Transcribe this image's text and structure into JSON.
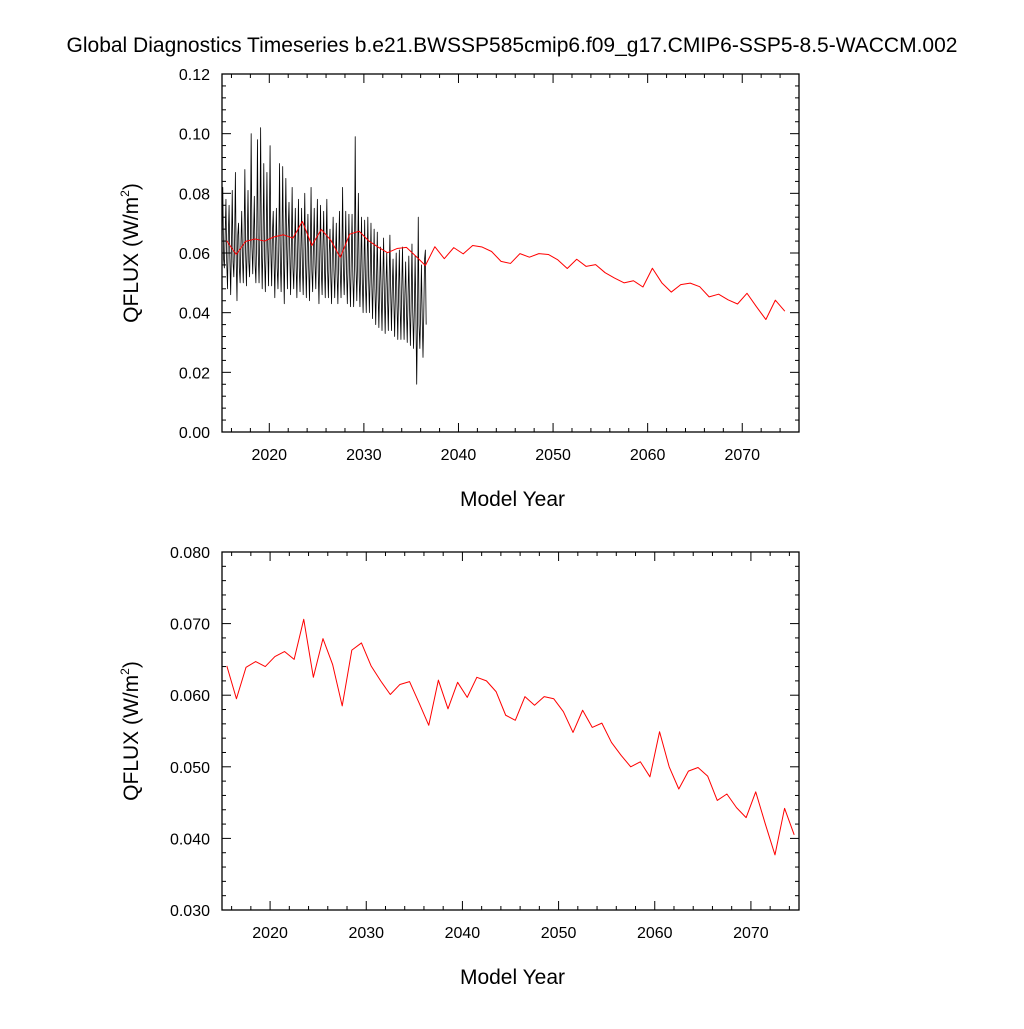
{
  "title": "Global Diagnostics Timeseries b.e21.BWSSP585cmip6.f09_g17.CMIP6-SSP5-8.5-WACCM.002",
  "colors": {
    "monthly": "#000000",
    "annual": "#ff0000",
    "frame": "#000000"
  },
  "chart_data": [
    {
      "type": "line",
      "xlabel": "Model Year",
      "ylabel_main": "QFLUX (W/m",
      "ylabel_sup": "2",
      "ylabel_tail": ")",
      "xlim": [
        2015,
        2076
      ],
      "ylim": [
        0.0,
        0.12
      ],
      "xticks": [
        2020,
        2030,
        2040,
        2050,
        2060,
        2070
      ],
      "xtick_labels": [
        "2020",
        "2030",
        "2040",
        "2050",
        "2060",
        "2070"
      ],
      "yticks": [
        0.0,
        0.02,
        0.04,
        0.06,
        0.08,
        0.1,
        0.12
      ],
      "ytick_labels": [
        "0.00",
        "0.02",
        "0.04",
        "0.06",
        "0.08",
        "0.10",
        "0.12"
      ],
      "series": [
        {
          "kind": "monthly",
          "x_start": 2015.0,
          "x_step": 0.0833333,
          "values": [
            0.062,
            0.082,
            0.058,
            0.055,
            0.066,
            0.078,
            0.057,
            0.048,
            0.066,
            0.076,
            0.058,
            0.046,
            0.062,
            0.081,
            0.057,
            0.052,
            0.064,
            0.087,
            0.058,
            0.044,
            0.066,
            0.07,
            0.055,
            0.05,
            0.063,
            0.074,
            0.058,
            0.05,
            0.065,
            0.088,
            0.06,
            0.049,
            0.063,
            0.081,
            0.057,
            0.052,
            0.065,
            0.1,
            0.062,
            0.053,
            0.066,
            0.079,
            0.056,
            0.05,
            0.065,
            0.098,
            0.06,
            0.05,
            0.066,
            0.102,
            0.062,
            0.048,
            0.064,
            0.09,
            0.058,
            0.047,
            0.063,
            0.087,
            0.062,
            0.049,
            0.068,
            0.096,
            0.06,
            0.049,
            0.067,
            0.074,
            0.058,
            0.045,
            0.062,
            0.075,
            0.055,
            0.048,
            0.061,
            0.09,
            0.057,
            0.047,
            0.063,
            0.089,
            0.059,
            0.043,
            0.065,
            0.085,
            0.062,
            0.048,
            0.068,
            0.077,
            0.059,
            0.046,
            0.063,
            0.082,
            0.055,
            0.048,
            0.061,
            0.075,
            0.056,
            0.045,
            0.061,
            0.078,
            0.055,
            0.047,
            0.061,
            0.075,
            0.055,
            0.046,
            0.062,
            0.08,
            0.057,
            0.045,
            0.06,
            0.073,
            0.055,
            0.044,
            0.06,
            0.082,
            0.054,
            0.047,
            0.062,
            0.075,
            0.056,
            0.048,
            0.063,
            0.078,
            0.055,
            0.043,
            0.059,
            0.076,
            0.054,
            0.046,
            0.062,
            0.074,
            0.055,
            0.045,
            0.062,
            0.078,
            0.054,
            0.045,
            0.06,
            0.068,
            0.052,
            0.043,
            0.06,
            0.072,
            0.054,
            0.045,
            0.058,
            0.07,
            0.053,
            0.043,
            0.058,
            0.074,
            0.054,
            0.045,
            0.058,
            0.082,
            0.055,
            0.046,
            0.058,
            0.074,
            0.054,
            0.043,
            0.057,
            0.073,
            0.052,
            0.042,
            0.058,
            0.073,
            0.052,
            0.042,
            0.055,
            0.099,
            0.056,
            0.044,
            0.057,
            0.08,
            0.052,
            0.042,
            0.055,
            0.072,
            0.05,
            0.04,
            0.054,
            0.071,
            0.05,
            0.04,
            0.055,
            0.072,
            0.052,
            0.04,
            0.053,
            0.07,
            0.05,
            0.038,
            0.052,
            0.068,
            0.048,
            0.036,
            0.05,
            0.067,
            0.047,
            0.035,
            0.049,
            0.062,
            0.045,
            0.034,
            0.05,
            0.065,
            0.046,
            0.033,
            0.049,
            0.06,
            0.045,
            0.034,
            0.05,
            0.066,
            0.047,
            0.034,
            0.048,
            0.058,
            0.044,
            0.032,
            0.047,
            0.06,
            0.043,
            0.031,
            0.047,
            0.061,
            0.042,
            0.031,
            0.048,
            0.062,
            0.043,
            0.031,
            0.046,
            0.057,
            0.041,
            0.03,
            0.045,
            0.059,
            0.041,
            0.029,
            0.044,
            0.063,
            0.04,
            0.028,
            0.041,
            0.059,
            0.039,
            0.016,
            0.038,
            0.072,
            0.036,
            0.028,
            0.04,
            0.056,
            0.038,
            0.025,
            0.04,
            0.058,
            0.061,
            0.036
          ]
        },
        {
          "kind": "annual",
          "x": [
            2015.5,
            2016.5,
            2017.5,
            2018.5,
            2019.5,
            2020.5,
            2021.5,
            2022.5,
            2023.5,
            2024.5,
            2025.5,
            2026.5,
            2027.5,
            2028.5,
            2029.5,
            2030.5,
            2031.5,
            2032.5,
            2033.5,
            2034.5,
            2035.5,
            2036.5,
            2037.5,
            2038.5,
            2039.5,
            2040.5,
            2041.5,
            2042.5,
            2043.5,
            2044.5,
            2045.5,
            2046.5,
            2047.5,
            2048.5,
            2049.5,
            2050.5,
            2051.5,
            2052.5,
            2053.5,
            2054.5,
            2055.5,
            2056.5,
            2057.5,
            2058.5,
            2059.5,
            2060.5,
            2061.5,
            2062.5,
            2063.5,
            2064.5,
            2065.5,
            2066.5,
            2067.5,
            2068.5,
            2069.5,
            2070.5,
            2071.5,
            2072.5,
            2073.5,
            2074.5
          ],
          "values": [
            0.0641,
            0.0595,
            0.0639,
            0.0647,
            0.064,
            0.0654,
            0.0661,
            0.065,
            0.0706,
            0.0625,
            0.0679,
            0.0643,
            0.0585,
            0.0663,
            0.0673,
            0.0641,
            0.062,
            0.0601,
            0.0615,
            0.0619,
            0.0589,
            0.0558,
            0.0621,
            0.0581,
            0.0618,
            0.0597,
            0.0625,
            0.062,
            0.0605,
            0.0572,
            0.0565,
            0.0598,
            0.0586,
            0.0598,
            0.0595,
            0.0577,
            0.0548,
            0.0579,
            0.0555,
            0.0561,
            0.0534,
            0.0516,
            0.05,
            0.0507,
            0.0486,
            0.0549,
            0.05,
            0.0469,
            0.0494,
            0.0499,
            0.0487,
            0.0453,
            0.0462,
            0.0443,
            0.0429,
            0.0465,
            0.042,
            0.0377,
            0.0442,
            0.0405
          ]
        }
      ]
    },
    {
      "type": "line",
      "xlabel": "Model Year",
      "ylabel_main": "QFLUX (W/m",
      "ylabel_sup": "2",
      "ylabel_tail": ")",
      "xlim": [
        2015,
        2075
      ],
      "ylim": [
        0.03,
        0.08
      ],
      "xticks": [
        2020,
        2030,
        2040,
        2050,
        2060,
        2070
      ],
      "xtick_labels": [
        "2020",
        "2030",
        "2040",
        "2050",
        "2060",
        "2070"
      ],
      "yticks": [
        0.03,
        0.04,
        0.05,
        0.06,
        0.07,
        0.08
      ],
      "ytick_labels": [
        "0.030",
        "0.040",
        "0.050",
        "0.060",
        "0.070",
        "0.080"
      ],
      "series": [
        {
          "kind": "annual",
          "x": [
            2015.5,
            2016.5,
            2017.5,
            2018.5,
            2019.5,
            2020.5,
            2021.5,
            2022.5,
            2023.5,
            2024.5,
            2025.5,
            2026.5,
            2027.5,
            2028.5,
            2029.5,
            2030.5,
            2031.5,
            2032.5,
            2033.5,
            2034.5,
            2035.5,
            2036.5,
            2037.5,
            2038.5,
            2039.5,
            2040.5,
            2041.5,
            2042.5,
            2043.5,
            2044.5,
            2045.5,
            2046.5,
            2047.5,
            2048.5,
            2049.5,
            2050.5,
            2051.5,
            2052.5,
            2053.5,
            2054.5,
            2055.5,
            2056.5,
            2057.5,
            2058.5,
            2059.5,
            2060.5,
            2061.5,
            2062.5,
            2063.5,
            2064.5,
            2065.5,
            2066.5,
            2067.5,
            2068.5,
            2069.5,
            2070.5,
            2071.5,
            2072.5,
            2073.5,
            2074.5
          ],
          "values": [
            0.0641,
            0.0595,
            0.0639,
            0.0647,
            0.064,
            0.0654,
            0.0661,
            0.065,
            0.0706,
            0.0625,
            0.0679,
            0.0643,
            0.0585,
            0.0663,
            0.0673,
            0.0641,
            0.062,
            0.0601,
            0.0615,
            0.0619,
            0.0589,
            0.0558,
            0.0621,
            0.0581,
            0.0618,
            0.0597,
            0.0625,
            0.062,
            0.0605,
            0.0572,
            0.0565,
            0.0598,
            0.0586,
            0.0598,
            0.0595,
            0.0577,
            0.0548,
            0.0579,
            0.0555,
            0.0561,
            0.0534,
            0.0516,
            0.05,
            0.0507,
            0.0486,
            0.0549,
            0.05,
            0.0469,
            0.0494,
            0.0499,
            0.0487,
            0.0453,
            0.0462,
            0.0443,
            0.0429,
            0.0465,
            0.042,
            0.0377,
            0.0442,
            0.0405
          ]
        }
      ]
    }
  ]
}
